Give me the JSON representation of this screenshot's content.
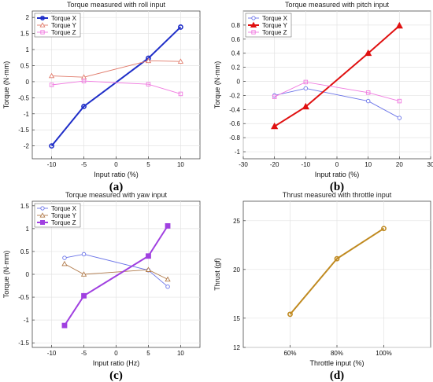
{
  "chart_data": [
    {
      "type": "line",
      "panel_label": "(a)",
      "title": "Torque measured with roll input",
      "xlabel": "Input ratio (%)",
      "ylabel": "Torque (N·mm)",
      "xlim": [
        -13,
        13
      ],
      "ylim": [
        -2.4,
        2.2
      ],
      "xticks": [
        -10,
        -5,
        0,
        5,
        10
      ],
      "xtick_labels": [
        "-10",
        "-5",
        "0",
        "5",
        "10"
      ],
      "yticks": [
        -2,
        -1.5,
        -1,
        -0.5,
        0,
        0.5,
        1,
        1.5,
        2
      ],
      "ytick_labels": [
        "-2",
        "-1.5",
        "-1",
        "-0.5",
        "0",
        "0.5",
        "1",
        "1.5",
        "2"
      ],
      "grid": true,
      "legend": "top-left",
      "series": [
        {
          "name": "Torque X",
          "color": "#1f2ec8",
          "marker": "circle",
          "bold": true,
          "x": [
            -10,
            -5,
            5,
            10
          ],
          "y": [
            -2.0,
            -0.77,
            0.73,
            1.7
          ]
        },
        {
          "name": "Torque Y",
          "color": "#e07a6a",
          "marker": "triangle",
          "bold": false,
          "x": [
            -10,
            -5,
            5,
            10
          ],
          "y": [
            0.18,
            0.14,
            0.65,
            0.63
          ]
        },
        {
          "name": "Torque Z",
          "color": "#f07ae0",
          "marker": "square",
          "bold": false,
          "x": [
            -10,
            -5,
            5,
            10
          ],
          "y": [
            -0.1,
            0.02,
            -0.08,
            -0.38
          ]
        }
      ]
    },
    {
      "type": "line",
      "panel_label": "(b)",
      "title": "Torque measured with pitch input",
      "xlabel": "Input ratio (%)",
      "ylabel": "Torque (N·mm)",
      "xlim": [
        -30,
        30
      ],
      "ylim": [
        -1.1,
        1.0
      ],
      "xticks": [
        -30,
        -20,
        -10,
        0,
        10,
        20,
        30
      ],
      "xtick_labels": [
        "-30",
        "-20",
        "-10",
        "0",
        "10",
        "20",
        "30"
      ],
      "yticks": [
        -1,
        -0.8,
        -0.6,
        -0.4,
        -0.2,
        0,
        0.2,
        0.4,
        0.6,
        0.8
      ],
      "ytick_labels": [
        "-1",
        "-0.8",
        "-0.6",
        "-0.4",
        "-0.2",
        "0",
        "0.2",
        "0.4",
        "0.6",
        "0.8"
      ],
      "grid": true,
      "legend": "top-left",
      "series": [
        {
          "name": "Torque X",
          "color": "#6b74e8",
          "marker": "circle",
          "bold": false,
          "x": [
            -20,
            -10,
            10,
            20
          ],
          "y": [
            -0.2,
            -0.1,
            -0.28,
            -0.52
          ]
        },
        {
          "name": "Torque Y",
          "color": "#e01010",
          "marker": "triangle",
          "bold": true,
          "x": [
            -20,
            -10,
            10,
            20
          ],
          "y": [
            -0.64,
            -0.36,
            0.4,
            0.79
          ]
        },
        {
          "name": "Torque Z",
          "color": "#f07ae0",
          "marker": "square",
          "bold": false,
          "x": [
            -20,
            -10,
            10,
            20
          ],
          "y": [
            -0.22,
            -0.01,
            -0.16,
            -0.28
          ]
        }
      ]
    },
    {
      "type": "line",
      "panel_label": "(c)",
      "title": "Torque measured with yaw input",
      "xlabel": "Input ratio (Hz)",
      "ylabel": "Torque (N·mm)",
      "xlim": [
        -13,
        13
      ],
      "ylim": [
        -1.6,
        1.6
      ],
      "xticks": [
        -10,
        -5,
        0,
        5,
        10
      ],
      "xtick_labels": [
        "-10",
        "-5",
        "0",
        "5",
        "10"
      ],
      "yticks": [
        -1.5,
        -1,
        -0.5,
        0,
        0.5,
        1,
        1.5
      ],
      "ytick_labels": [
        "-1.5",
        "-1",
        "-0.5",
        "0",
        "0.5",
        "1",
        "1.5"
      ],
      "grid": true,
      "legend": "top-left",
      "series": [
        {
          "name": "Torque X",
          "color": "#6b74e8",
          "marker": "circle",
          "bold": false,
          "x": [
            -8,
            -5,
            5,
            8
          ],
          "y": [
            0.36,
            0.44,
            0.09,
            -0.27
          ]
        },
        {
          "name": "Torque Y",
          "color": "#b07a4a",
          "marker": "triangle",
          "bold": false,
          "x": [
            -8,
            -5,
            5,
            8
          ],
          "y": [
            0.23,
            0.0,
            0.1,
            -0.11
          ]
        },
        {
          "name": "Torque Z",
          "color": "#a040e0",
          "marker": "square",
          "bold": true,
          "x": [
            -8,
            -5,
            5,
            8
          ],
          "y": [
            -1.12,
            -0.47,
            0.4,
            1.06
          ]
        }
      ]
    },
    {
      "type": "line",
      "panel_label": "(d)",
      "title": "Thrust measured with throttle input",
      "xlabel": "Throttle input (%)",
      "ylabel": "Thrust (gf)",
      "xlim": [
        40,
        120
      ],
      "ylim": [
        12,
        27
      ],
      "xticks": [
        60,
        80,
        100
      ],
      "xtick_labels": [
        "60%",
        "80%",
        "100%"
      ],
      "yticks": [
        12,
        15,
        20,
        25
      ],
      "ytick_labels": [
        "12",
        "15",
        "20",
        "25"
      ],
      "grid": true,
      "legend": "none",
      "series": [
        {
          "color": "#c08a20",
          "marker": "circle",
          "bold": true,
          "x": [
            60,
            80,
            100
          ],
          "y": [
            15.4,
            21.1,
            24.2
          ]
        }
      ]
    }
  ]
}
